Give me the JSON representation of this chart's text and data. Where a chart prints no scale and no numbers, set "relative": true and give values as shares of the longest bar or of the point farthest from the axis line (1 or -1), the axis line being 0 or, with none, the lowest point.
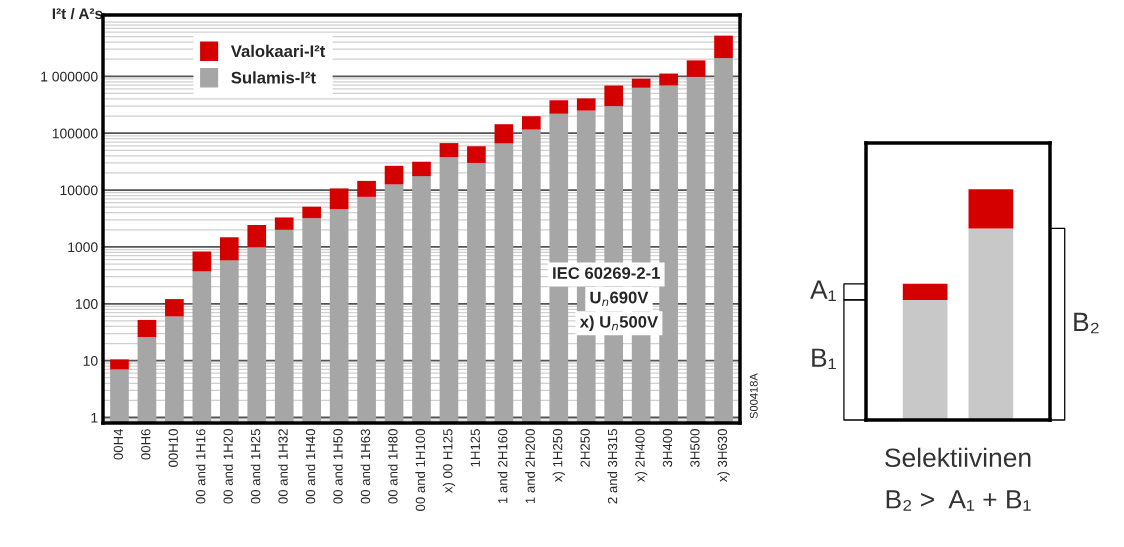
{
  "chart_data": [
    {
      "type": "bar",
      "stacked": true,
      "log": true,
      "ylabel": "I²t / A²s",
      "categories": [
        "00H4",
        "00H6",
        "00H10",
        "00 and 1H16",
        "00 and 1H20",
        "00 and 1H25",
        "00 and 1H32",
        "00 and 1H40",
        "00 and 1H50",
        "00 and 1H63",
        "00 and 1H80",
        "00 and 1H100",
        "x) 00 H125",
        "1H125",
        "1 and 2H160",
        "1 and 2H200",
        "x) 1H250",
        "2H250",
        "2 and 3H315",
        "x) 2H400",
        "3H400",
        "3H500",
        "x) 3H630"
      ],
      "series": [
        {
          "name": "Sulamis-I²t",
          "color": "#a6a6a6",
          "values": [
            7,
            26,
            60,
            370,
            580,
            990,
            2000,
            3200,
            4600,
            7600,
            12600,
            17600,
            38000,
            30000,
            66000,
            116000,
            220000,
            250000,
            300000,
            630000,
            690000,
            980000,
            2100000
          ]
        },
        {
          "name": "Valokaari-I²t",
          "color": "#d40000",
          "values": [
            3.5,
            26,
            61,
            460,
            900,
            1440,
            1300,
            1900,
            6100,
            6900,
            14100,
            13900,
            29000,
            29000,
            78000,
            83000,
            160000,
            160000,
            390000,
            280000,
            430000,
            930000,
            3100000
          ]
        }
      ],
      "ylim": [
        0.8,
        12000000
      ],
      "yticks": [
        1,
        10,
        100,
        1000,
        10000,
        100000,
        {
          "value": 1000000,
          "label": "1 000000"
        }
      ],
      "grid": "y",
      "legend": "top left",
      "annotations": [
        "IEC 60269-2-1",
        "U$_{n}$690V",
        "x) U$_{n}$500V",
        "S00418A"
      ]
    },
    {
      "type": "bar",
      "stacked": true,
      "relative": true,
      "categories": [
        null,
        null
      ],
      "series": [
        {
          "color": "#c8c8c8",
          "values": [
            0.52,
            0.83
          ]
        },
        {
          "color": "#d40000",
          "values": [
            0.07,
            0.17
          ]
        }
      ],
      "annotations": [
        "A₁",
        "B₁",
        "B₂",
        "Selektiivinen",
        "B₂ >  A₁ + B₁"
      ]
    }
  ]
}
